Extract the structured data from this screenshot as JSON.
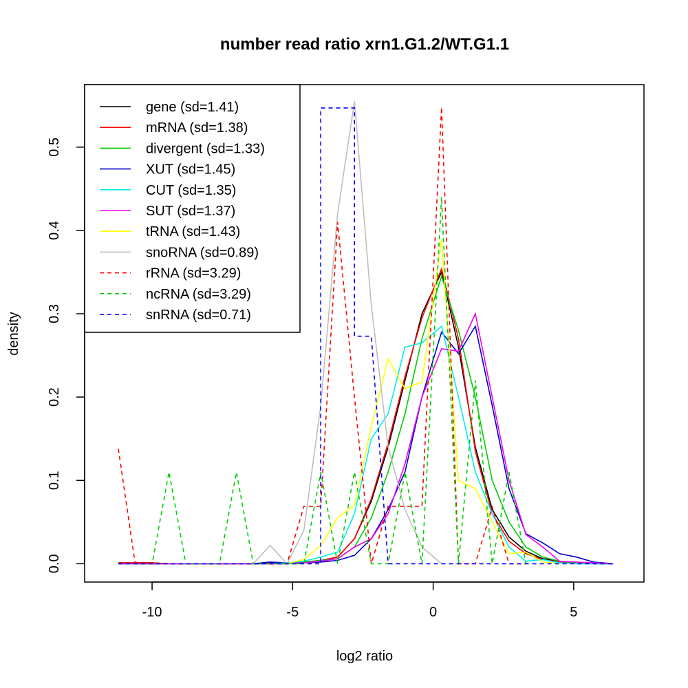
{
  "chart_data": {
    "type": "line",
    "title": "number read ratio xrn1.G1.2/WT.G1.1",
    "xlabel": "log2 ratio",
    "ylabel": "density",
    "xlim": [
      -12.4,
      7.5
    ],
    "ylim": [
      -0.022,
      0.575
    ],
    "xticks": [
      -10,
      -5,
      0,
      5
    ],
    "xtick_labels": [
      "-10",
      "-5",
      "0",
      "5"
    ],
    "yticks": [
      0.0,
      0.1,
      0.2,
      0.3,
      0.4,
      0.5
    ],
    "ytick_labels": [
      "0.0",
      "0.1",
      "0.2",
      "0.3",
      "0.4",
      "0.5"
    ],
    "legend_position": "top-left",
    "series": [
      {
        "name": "gene (sd=1.41)",
        "color": "#000000",
        "dash": "solid",
        "x": [
          -11.2,
          -10.6,
          -10,
          -9.4,
          -8.8,
          -8.2,
          -7.6,
          -7,
          -6.4,
          -5.8,
          -5.2,
          -4.6,
          -4,
          -3.4,
          -2.8,
          -2.2,
          -1.6,
          -1,
          -0.4,
          0.3,
          0.9,
          1.5,
          2.1,
          2.7,
          3.3,
          3.9,
          4.5,
          5.1,
          5.7,
          6.4
        ],
        "y": [
          0.001,
          0.001,
          0.001,
          0,
          0,
          0,
          0,
          0,
          0,
          0.001,
          0.001,
          0.002,
          0.004,
          0.008,
          0.03,
          0.075,
          0.14,
          0.22,
          0.3,
          0.35,
          0.26,
          0.14,
          0.065,
          0.032,
          0.015,
          0.006,
          0.003,
          0.001,
          0.001,
          0
        ]
      },
      {
        "name": "mRNA (sd=1.38)",
        "color": "#ff0000",
        "dash": "solid",
        "x": [
          -11.2,
          -10.6,
          -10,
          -9.4,
          -8.8,
          -8.2,
          -7.6,
          -7,
          -6.4,
          -5.8,
          -5.2,
          -4.6,
          -4,
          -3.4,
          -2.8,
          -2.2,
          -1.6,
          -1,
          -0.4,
          0.3,
          0.9,
          1.5,
          2.1,
          2.7,
          3.3,
          3.9,
          4.5,
          5.1,
          5.7,
          6.4
        ],
        "y": [
          0.001,
          0.001,
          0.001,
          0,
          0,
          0,
          0,
          0,
          0,
          0.001,
          0.001,
          0.002,
          0.004,
          0.008,
          0.03,
          0.078,
          0.145,
          0.225,
          0.295,
          0.354,
          0.27,
          0.135,
          0.06,
          0.027,
          0.012,
          0.005,
          0.002,
          0.001,
          0,
          0
        ]
      },
      {
        "name": "divergent (sd=1.33)",
        "color": "#00cd00",
        "dash": "solid",
        "x": [
          -11.2,
          -10.6,
          -10,
          -9.4,
          -8.8,
          -8.2,
          -7.6,
          -7,
          -6.4,
          -5.8,
          -5.2,
          -4.6,
          -4,
          -3.4,
          -2.8,
          -2.2,
          -1.6,
          -1,
          -0.4,
          0.3,
          0.9,
          1.5,
          2.1,
          2.7,
          3.3,
          3.9,
          4.5,
          5.1,
          5.7,
          6.4
        ],
        "y": [
          0,
          0,
          0,
          0,
          0,
          0,
          0,
          0,
          0,
          0,
          0,
          0.002,
          0.004,
          0.006,
          0.02,
          0.055,
          0.11,
          0.18,
          0.27,
          0.345,
          0.28,
          0.2,
          0.1,
          0.05,
          0.02,
          0.008,
          0.003,
          0.001,
          0,
          0
        ]
      },
      {
        "name": "XUT (sd=1.45)",
        "color": "#0000cd",
        "dash": "solid",
        "x": [
          -11.2,
          -10.6,
          -10,
          -9.4,
          -8.8,
          -8.2,
          -7.6,
          -7,
          -6.4,
          -5.8,
          -5.2,
          -4.6,
          -4,
          -3.4,
          -2.8,
          -2.2,
          -1.6,
          -1,
          -0.4,
          0.3,
          0.9,
          1.5,
          2.1,
          2.7,
          3.3,
          3.9,
          4.5,
          5.1,
          5.7,
          6.4
        ],
        "y": [
          0,
          0,
          0,
          0,
          0,
          0,
          0,
          0,
          0,
          0.002,
          0.001,
          0.001,
          0.002,
          0.004,
          0.01,
          0.03,
          0.065,
          0.11,
          0.2,
          0.278,
          0.252,
          0.285,
          0.19,
          0.09,
          0.036,
          0.025,
          0.012,
          0.008,
          0.002,
          0
        ]
      },
      {
        "name": "CUT (sd=1.35)",
        "color": "#00eeee",
        "dash": "solid",
        "x": [
          -11.2,
          -10.6,
          -10,
          -9.4,
          -8.8,
          -8.2,
          -7.6,
          -7,
          -6.4,
          -5.8,
          -5.2,
          -4.6,
          -4,
          -3.4,
          -2.8,
          -2.2,
          -1.6,
          -1,
          -0.4,
          0.3,
          0.9,
          1.5,
          2.1,
          2.7,
          3.3,
          3.9,
          4.5,
          5.1,
          5.7,
          6.4
        ],
        "y": [
          0,
          0,
          0,
          0,
          0,
          0,
          0,
          0,
          0,
          0,
          0.001,
          0.003,
          0.008,
          0.014,
          0.06,
          0.15,
          0.18,
          0.26,
          0.265,
          0.285,
          0.2,
          0.11,
          0.06,
          0.02,
          0.003,
          0.005,
          0.001,
          0,
          0,
          0
        ]
      },
      {
        "name": "SUT (sd=1.37)",
        "color": "#ee00ee",
        "dash": "solid",
        "x": [
          -11.2,
          -10.6,
          -10,
          -9.4,
          -8.8,
          -8.2,
          -7.6,
          -7,
          -6.4,
          -5.8,
          -5.2,
          -4.6,
          -4,
          -3.4,
          -2.8,
          -2.2,
          -1.6,
          -1,
          -0.4,
          0.3,
          0.9,
          1.5,
          2.1,
          2.7,
          3.3,
          3.9,
          4.5,
          5.1,
          5.7,
          6.4
        ],
        "y": [
          0,
          0,
          0,
          0,
          0,
          0,
          0,
          0,
          0,
          0,
          0,
          0.001,
          0.003,
          0.006,
          0.02,
          0.03,
          0.06,
          0.12,
          0.2,
          0.258,
          0.255,
          0.3,
          0.2,
          0.1,
          0.035,
          0.02,
          0.003,
          0.002,
          0.001,
          0
        ]
      },
      {
        "name": "tRNA (sd=1.43)",
        "color": "#ffff00",
        "dash": "solid",
        "x": [
          -5.2,
          -4.6,
          -4,
          -3.4,
          -2.8,
          -2.2,
          -1.6,
          -1,
          -0.4,
          0.3,
          0.9,
          1.5,
          2.1,
          2.7,
          3.3,
          3.9,
          4.5
        ],
        "y": [
          0,
          0.005,
          0.022,
          0.055,
          0.07,
          0.165,
          0.246,
          0.21,
          0.218,
          0.39,
          0.1,
          0.09,
          0.05,
          0.012,
          0.014,
          0.002,
          0
        ]
      },
      {
        "name": "snoRNA (sd=0.89)",
        "color": "#bebebe",
        "dash": "solid",
        "x": [
          -6.4,
          -5.8,
          -5.2,
          -4.6,
          -4,
          -3.4,
          -2.8,
          -2.2,
          -1.6,
          -1,
          -0.4,
          0.3
        ],
        "y": [
          0,
          0.022,
          0,
          0.04,
          0.19,
          0.42,
          0.555,
          0.31,
          0.14,
          0.065,
          0.02,
          0
        ]
      },
      {
        "name": "rRNA (sd=3.29)",
        "color": "#ff0000",
        "dash": "dashed",
        "x": [
          -11.2,
          -10.6,
          -10,
          -9.4,
          -8.8,
          -8.2,
          -7.6,
          -7,
          -6.4,
          -5.8,
          -5.2,
          -4.6,
          -4,
          -3.4,
          -2.8,
          -2.2,
          -1.6,
          -1,
          -0.4,
          0.3,
          0.9,
          1.5,
          2.1,
          2.7,
          3.3
        ],
        "y": [
          0.138,
          0,
          0,
          0,
          0,
          0,
          0,
          0,
          0,
          0,
          0,
          0.069,
          0.069,
          0.41,
          0.2,
          0,
          0.069,
          0.069,
          0.069,
          0.548,
          0,
          0,
          0.068,
          0,
          0
        ]
      },
      {
        "name": "ncRNA (sd=3.29)",
        "color": "#00cd00",
        "dash": "dashed",
        "x": [
          -11.2,
          -10.6,
          -10,
          -9.4,
          -8.8,
          -8.2,
          -7.6,
          -7,
          -6.4,
          -5.8,
          -5.2,
          -4.6,
          -4,
          -3.4,
          -2.8,
          -2.2,
          -1.6,
          -1,
          -0.4,
          0.3,
          0.9,
          1.5,
          2.1,
          2.7,
          3.3
        ],
        "y": [
          0,
          0,
          0,
          0.11,
          0,
          0,
          0,
          0.11,
          0,
          0,
          0,
          0,
          0.11,
          0,
          0.11,
          0,
          0,
          0.11,
          0,
          0.44,
          0,
          0.22,
          0,
          0.11,
          0
        ]
      },
      {
        "name": "snRNA (sd=0.71)",
        "color": "#0000ff",
        "dash": "dashed",
        "x": [
          -11.2,
          -5.2,
          -4.6,
          -4.0,
          -4.0,
          -3.5,
          -3.4,
          -3.4,
          -2.8,
          -2.8,
          -2.2,
          -2.2,
          -1.6,
          -1.6,
          0.3,
          6.4
        ],
        "y": [
          0,
          0,
          0,
          0,
          0.547,
          0.547,
          0.547,
          0.547,
          0.547,
          0.273,
          0.273,
          0.273,
          0,
          0,
          0,
          0
        ]
      }
    ]
  }
}
